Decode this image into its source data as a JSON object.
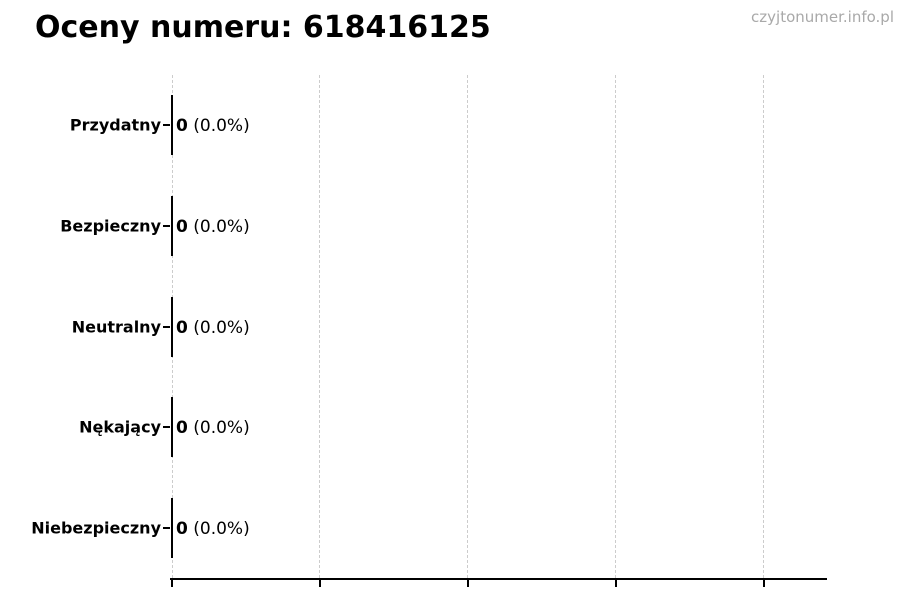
{
  "watermark": "czyjtonumer.info.pl",
  "chart_data": {
    "type": "bar",
    "orientation": "horizontal",
    "title": "Oceny numeru: 618416125",
    "categories": [
      "Przydatny",
      "Bezpieczny",
      "Neutralny",
      "Nękający",
      "Niebezpieczny"
    ],
    "values": [
      0,
      0,
      0,
      0,
      0
    ],
    "value_label_counts": [
      "0",
      "0",
      "0",
      "0",
      "0"
    ],
    "value_label_percents": [
      "(0.0%)",
      "(0.0%)",
      "(0.0%)",
      "(0.0%)",
      "(0.0%)"
    ],
    "xlabel": "",
    "ylabel": "",
    "x_axis": {
      "tick_labels": [],
      "gridlines": 5,
      "grid_style": "dashed"
    },
    "legend": "none",
    "grid": "vertical-dashed"
  },
  "colors": {
    "text": "#000000",
    "grid": "#cccccc",
    "axis": "#000000",
    "watermark": "#a9a9a9",
    "background": "#ffffff"
  }
}
